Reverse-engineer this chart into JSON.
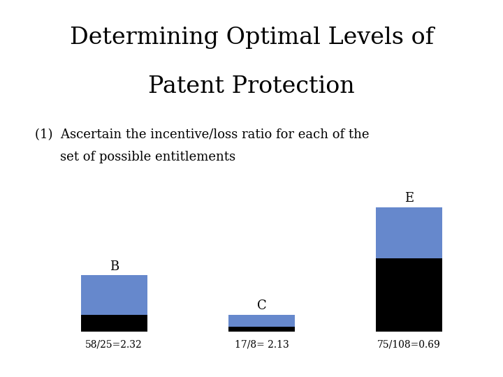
{
  "title_line1": "Determining Optimal Levels of",
  "title_line2": "Patent Protection",
  "subtitle_prefix": "(1)  ",
  "subtitle_line1": "Ascertain the incentive/loss ratio for each of the",
  "subtitle_line2": "set of possible entitlements",
  "bars": [
    {
      "label": "B",
      "black_val": 25,
      "blue_val": 58,
      "ratio_text": "58/25=2.32"
    },
    {
      "label": "C",
      "black_val": 8,
      "blue_val": 17,
      "ratio_text": "17/8= 2.13"
    },
    {
      "label": "E",
      "black_val": 108,
      "blue_val": 75,
      "ratio_text": "75/108=0.69"
    }
  ],
  "bar_positions": [
    1,
    2,
    3
  ],
  "bar_width": 0.45,
  "black_color": "#000000",
  "blue_color": "#6688CC",
  "background_color": "#ffffff",
  "title_fontsize": 24,
  "subtitle_fontsize": 13,
  "label_fontsize": 13,
  "ratio_fontsize": 10
}
